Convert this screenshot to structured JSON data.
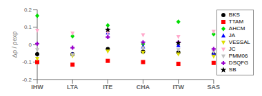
{
  "chart_data": {
    "type": "scatter",
    "categories": [
      "IHW",
      "LTA",
      "ITE",
      "CHA",
      "ITW",
      "SAS"
    ],
    "series": [
      {
        "name": "BKS",
        "color": "#000000",
        "marker": "circle",
        "values": [
          -0.055,
          -0.055,
          -0.025,
          -0.04,
          -0.045,
          -0.055
        ]
      },
      {
        "name": "TTAM",
        "color": "#ff0000",
        "marker": "square",
        "values": [
          -0.1,
          -0.115,
          -0.093,
          -0.1,
          -0.11,
          -0.105
        ]
      },
      {
        "name": "AHCM",
        "color": "#00dd00",
        "marker": "diamond",
        "values": [
          0.165,
          0.048,
          0.11,
          0.003,
          0.13,
          0.06
        ]
      },
      {
        "name": "JA",
        "color": "#0000ff",
        "marker": "triangle-up",
        "values": [
          null,
          -0.055,
          0.068,
          -0.012,
          -0.005,
          -0.05
        ]
      },
      {
        "name": "VESSAL",
        "color": "#dddd00",
        "marker": "triangle-down",
        "values": [
          -0.08,
          -0.065,
          -0.038,
          -0.045,
          -0.055,
          -0.068
        ]
      },
      {
        "name": "JC",
        "color": "#ffaacc",
        "marker": "triangle-down",
        "values": [
          0.08,
          0.065,
          0.068,
          0.055,
          0.045,
          0.075
        ]
      },
      {
        "name": "PMM06",
        "color": "#c0c0c0",
        "marker": "triangle-down",
        "values": [
          -0.03,
          -0.058,
          null,
          -0.02,
          -0.03,
          -0.04
        ]
      },
      {
        "name": "DSQFG",
        "color": "#9900cc",
        "marker": "plus",
        "values": [
          0.005,
          -0.018,
          0.043,
          0.013,
          0.013,
          -0.025
        ]
      },
      {
        "name": "SB",
        "color": "#000000",
        "marker": "star",
        "values": [
          null,
          null,
          0.085,
          null,
          0.01,
          null
        ]
      }
    ],
    "ylabel": "Δρ / ρexp",
    "ylim": [
      -0.2,
      0.2
    ],
    "yticks": [
      -0.2,
      -0.1,
      0,
      0.1,
      0.2
    ],
    "grid": false,
    "legend": "right"
  }
}
